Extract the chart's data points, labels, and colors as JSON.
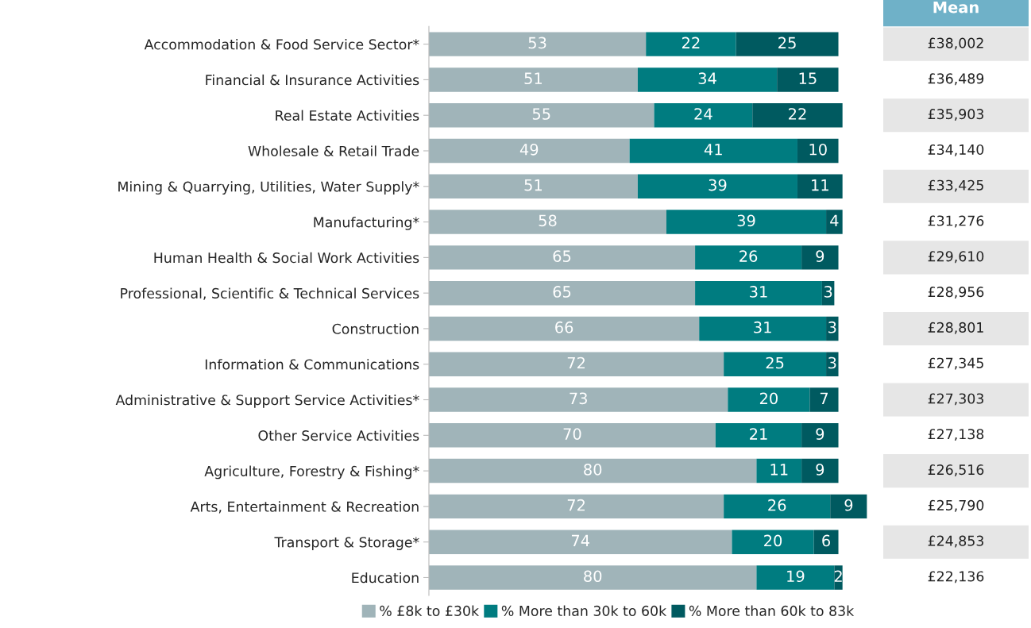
{
  "chart_data": {
    "type": "bar",
    "orientation": "horizontal",
    "stacked": true,
    "data_labels": true,
    "grid": false,
    "legend": "bottom",
    "categories": [
      "Accommodation & Food Service Sector*",
      "Financial & Insurance Activities",
      "Real Estate Activities",
      "Wholesale & Retail Trade",
      "Mining & Quarrying, Utilities, Water Supply*",
      "Manufacturing*",
      "Human Health & Social Work Activities",
      "Professional, Scientific & Technical Services",
      "Construction",
      "Information & Communications",
      "Administrative & Support Service Activities*",
      "Other Service Activities",
      "Agriculture, Forestry & Fishing*",
      "Arts, Entertainment & Recreation",
      "Transport & Storage*",
      "Education"
    ],
    "series": [
      {
        "name": "% £8k to £30k",
        "color": "#a0b4b9",
        "values": [
          53,
          51,
          55,
          49,
          51,
          58,
          65,
          65,
          66,
          72,
          73,
          70,
          80,
          72,
          74,
          80
        ]
      },
      {
        "name": "% More than 30k to 60k",
        "color": "#007c80",
        "values": [
          22,
          34,
          24,
          41,
          39,
          39,
          26,
          31,
          31,
          25,
          20,
          21,
          11,
          26,
          20,
          19
        ]
      },
      {
        "name": "% More than 60k to 83k",
        "color": "#005a60",
        "values": [
          25,
          15,
          22,
          10,
          11,
          4,
          9,
          3,
          3,
          3,
          7,
          9,
          9,
          9,
          6,
          2
        ]
      }
    ],
    "annotations": [
      "Mean",
      "£38,002",
      "£36,489",
      "£35,903",
      "£34,140",
      "£33,425",
      "£31,276",
      "£29,610",
      "£28,956",
      "£28,801",
      "£27,345",
      "£27,303",
      "£27,138",
      "£26,516",
      "£25,790",
      "£24,853",
      "£22,136"
    ]
  }
}
